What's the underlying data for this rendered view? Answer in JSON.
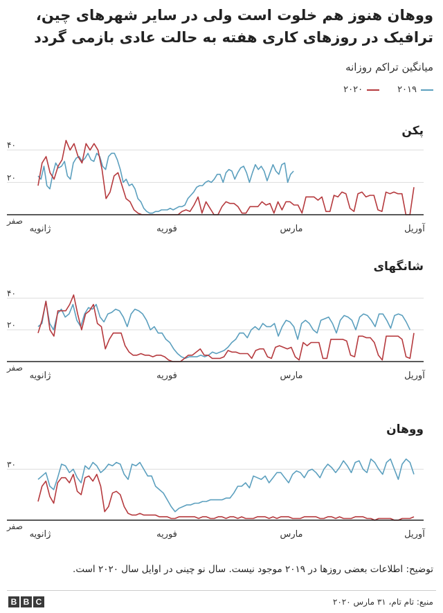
{
  "title": "ووهان هنوز هم خلوت است ولی در سایر شهرهای چین، ترافیک در روزهای کاری هفته به حالت عادی بازمی گردد",
  "subtitle": "میانگین تراکم روزانه",
  "legend": [
    {
      "name": "۲۰۱۹",
      "color": "#5b9fbe"
    },
    {
      "name": "۲۰۲۰",
      "color": "#b5393d"
    }
  ],
  "footnote": "توضیح: اطلاعات بعضی روزها در ۲۰۱۹ موجود نیست. سال نو چینی در اوایل سال ۲۰۲۰ است.",
  "source": "منبع: تام تام، ۳۱ مارس ۲۰۲۰",
  "brand": [
    "B",
    "B",
    "C"
  ],
  "colors": {
    "y2019": "#5b9fbe",
    "y2020": "#b5393d",
    "baseline": "#222222",
    "grid": "#dddddd"
  },
  "chart_data": [
    {
      "type": "line",
      "title": "پکن",
      "x_tick_labels": [
        "ژانویه",
        "فوریه",
        "مارس",
        "آوریل"
      ],
      "y_tick_labels": [
        "صفر",
        "۲۰",
        "۴۰"
      ],
      "y_ticks": [
        0,
        20,
        40
      ],
      "ylim": [
        0,
        48
      ],
      "series": [
        {
          "name": "۲۰۱۹",
          "color": "#5b9fbe",
          "values": [
            24,
            22,
            30,
            18,
            16,
            25,
            32,
            29,
            30,
            33,
            24,
            22,
            32,
            35,
            36,
            33,
            35,
            38,
            34,
            33,
            38,
            36,
            30,
            28,
            36,
            38,
            38,
            34,
            28,
            20,
            22,
            18,
            19,
            16,
            10,
            8,
            4,
            2,
            1,
            1,
            2,
            2,
            3,
            3,
            3,
            4,
            3,
            4,
            5,
            5,
            6,
            10,
            12,
            14,
            17,
            18,
            18,
            20,
            21,
            20,
            22,
            25,
            25,
            20,
            26,
            28,
            27,
            22,
            26,
            29,
            30,
            26,
            20,
            26,
            31,
            28,
            30,
            27,
            21,
            26,
            31,
            27,
            25,
            31,
            32,
            20,
            25,
            27,
            null,
            null,
            null,
            null,
            null,
            null,
            null,
            null,
            null,
            null,
            null,
            null,
            null,
            null,
            null,
            null,
            null,
            null,
            null,
            null,
            null,
            null,
            null,
            null,
            null,
            null,
            null,
            null,
            null,
            null,
            null,
            null,
            null,
            null,
            null,
            null,
            null,
            null,
            null,
            null,
            null
          ]
        },
        {
          "name": "۲۰۲۰",
          "color": "#b5393d",
          "values": [
            18,
            32,
            36,
            26,
            22,
            30,
            34,
            46,
            40,
            44,
            36,
            32,
            44,
            40,
            44,
            40,
            28,
            10,
            14,
            24,
            26,
            18,
            10,
            8,
            3,
            1,
            0,
            0,
            0,
            0,
            0,
            0,
            0,
            0,
            0,
            0,
            2,
            3,
            2,
            6,
            11,
            1,
            8,
            4,
            0,
            0,
            5,
            8,
            7,
            7,
            5,
            1,
            1,
            5,
            5,
            5,
            8,
            6,
            7,
            1,
            8,
            3,
            8,
            8,
            6,
            6,
            1,
            11,
            11,
            11,
            9,
            11,
            2,
            2,
            12,
            11,
            14,
            13,
            4,
            2,
            13,
            14,
            11,
            12,
            12,
            3,
            2,
            14,
            13,
            14,
            13,
            13,
            0,
            0,
            17
          ]
        }
      ]
    },
    {
      "type": "line",
      "title": "شانگهای",
      "x_tick_labels": [
        "ژانویه",
        "فوریه",
        "مارس",
        "آوریل"
      ],
      "y_tick_labels": [
        "صفر",
        "۲۰",
        "۴۰"
      ],
      "y_ticks": [
        0,
        20,
        40
      ],
      "ylim": [
        0,
        48
      ],
      "series": [
        {
          "name": "۲۰۱۹",
          "color": "#5b9fbe",
          "values": [
            22,
            24,
            38,
            24,
            20,
            30,
            33,
            28,
            30,
            36,
            26,
            22,
            30,
            34,
            33,
            36,
            28,
            25,
            30,
            31,
            33,
            32,
            28,
            22,
            30,
            33,
            32,
            30,
            26,
            20,
            22,
            18,
            18,
            14,
            12,
            8,
            5,
            3,
            2,
            3,
            3,
            3,
            4,
            3,
            4,
            6,
            5,
            6,
            7,
            9,
            12,
            14,
            18,
            18,
            15,
            20,
            22,
            20,
            24,
            22,
            22,
            24,
            16,
            22,
            26,
            25,
            22,
            14,
            24,
            26,
            24,
            20,
            18,
            26,
            27,
            28,
            24,
            18,
            26,
            29,
            28,
            26,
            20,
            28,
            30,
            29,
            26,
            22,
            30,
            30,
            26,
            21,
            29,
            30,
            29,
            25,
            20,
            null
          ]
        },
        {
          "name": "۲۰۲۰",
          "color": "#b5393d",
          "values": [
            18,
            26,
            38,
            20,
            16,
            32,
            32,
            32,
            36,
            42,
            30,
            20,
            30,
            32,
            36,
            24,
            22,
            8,
            14,
            18,
            18,
            18,
            10,
            6,
            4,
            4,
            5,
            4,
            4,
            3,
            4,
            4,
            3,
            1,
            0,
            0,
            0,
            2,
            4,
            4,
            6,
            8,
            4,
            4,
            2,
            2,
            2,
            3,
            7,
            6,
            6,
            5,
            5,
            5,
            2,
            7,
            8,
            8,
            3,
            2,
            9,
            10,
            9,
            8,
            9,
            3,
            1,
            12,
            10,
            12,
            12,
            12,
            2,
            2,
            14,
            14,
            14,
            14,
            13,
            4,
            3,
            16,
            16,
            15,
            15,
            12,
            4,
            1,
            16,
            16,
            16,
            16,
            14,
            3,
            2,
            18
          ]
        }
      ]
    },
    {
      "type": "line",
      "title": "ووهان",
      "x_tick_labels": [
        "ژانویه",
        "فوریه",
        "مارس",
        "آوریل"
      ],
      "y_tick_labels": [
        "صفر",
        "۳۰"
      ],
      "y_ticks": [
        0,
        30
      ],
      "ylim": [
        0,
        42
      ],
      "series": [
        {
          "name": "۲۰۱۹",
          "color": "#5b9fbe",
          "values": [
            24,
            26,
            28,
            20,
            18,
            25,
            33,
            32,
            28,
            30,
            25,
            22,
            32,
            30,
            34,
            32,
            28,
            30,
            33,
            32,
            34,
            33,
            27,
            24,
            33,
            32,
            34,
            30,
            26,
            26,
            20,
            18,
            16,
            12,
            8,
            5,
            7,
            8,
            9,
            9,
            10,
            10,
            11,
            11,
            12,
            12,
            12,
            12,
            13,
            13,
            16,
            20,
            20,
            22,
            19,
            26,
            25,
            24,
            26,
            22,
            25,
            28,
            28,
            25,
            22,
            27,
            29,
            28,
            25,
            29,
            30,
            28,
            25,
            30,
            33,
            31,
            28,
            31,
            35,
            32,
            28,
            34,
            35,
            30,
            28,
            36,
            34,
            30,
            27,
            34,
            36,
            30,
            24,
            33,
            36,
            34,
            27
          ]
        },
        {
          "name": "۲۰۲۰",
          "color": "#b5393d",
          "values": [
            11,
            20,
            23,
            14,
            10,
            22,
            25,
            25,
            22,
            27,
            17,
            15,
            25,
            26,
            23,
            27,
            20,
            5,
            8,
            16,
            17,
            15,
            8,
            4,
            3,
            3,
            4,
            3,
            3,
            3,
            3,
            2,
            2,
            2,
            1,
            1,
            2,
            2,
            2,
            2,
            2,
            1,
            2,
            2,
            1,
            1,
            2,
            2,
            1,
            2,
            2,
            1,
            2,
            1,
            1,
            1,
            2,
            2,
            2,
            1,
            2,
            1,
            2,
            2,
            2,
            1,
            1,
            1,
            2,
            2,
            2,
            2,
            1,
            1,
            2,
            2,
            1,
            2,
            1,
            1,
            1,
            2,
            2,
            2,
            1,
            1,
            0,
            1,
            1,
            1,
            1,
            0,
            0,
            1,
            1,
            1,
            2
          ]
        }
      ]
    }
  ]
}
